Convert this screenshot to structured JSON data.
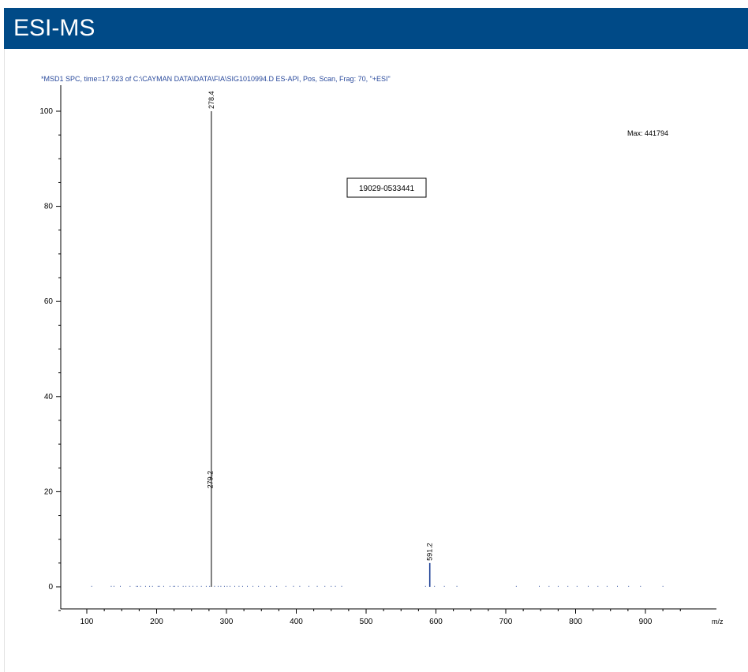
{
  "header": {
    "title": "ESI-MS"
  },
  "chart_data": {
    "type": "bar",
    "title": "*MSD1 SPC, time=17.923 of C:\\CAYMAN DATA\\DATA\\FIA\\SIG1010994.D   ES-API, Pos, Scan, Frag: 70, \"+ESI\"",
    "xlabel": "m/z",
    "ylabel": "",
    "xlim": [
      65,
      1000
    ],
    "ylim": [
      -5,
      105
    ],
    "x_ticks": [
      100,
      200,
      300,
      400,
      500,
      600,
      700,
      800,
      900
    ],
    "y_ticks": [
      0,
      20,
      40,
      60,
      80,
      100
    ],
    "max_label": "Max:  441794",
    "sample_id": "19029-0533441",
    "peaks": [
      {
        "mz": 278.4,
        "intensity": 100,
        "label": "278.4",
        "color": "#000000"
      },
      {
        "mz": 279.2,
        "intensity": 20,
        "label": "279.2",
        "color": "#000000"
      },
      {
        "mz": 591.2,
        "intensity": 5,
        "label": "591.2",
        "color": "#1c3f94"
      }
    ],
    "noise_mz": [
      107,
      135,
      139,
      148,
      162,
      171,
      173,
      177,
      184,
      190,
      194,
      202,
      204,
      210,
      219,
      224,
      226,
      231,
      238,
      242,
      247,
      252,
      258,
      264,
      271,
      276,
      283,
      288,
      292,
      297,
      301,
      305,
      312,
      318,
      323,
      330,
      338,
      346,
      355,
      363,
      372,
      385,
      396,
      405,
      418,
      430,
      441,
      450,
      456,
      465,
      585,
      598,
      612,
      630,
      715,
      748,
      762,
      775,
      789,
      802,
      818,
      832,
      845,
      860,
      876,
      893,
      925
    ]
  }
}
